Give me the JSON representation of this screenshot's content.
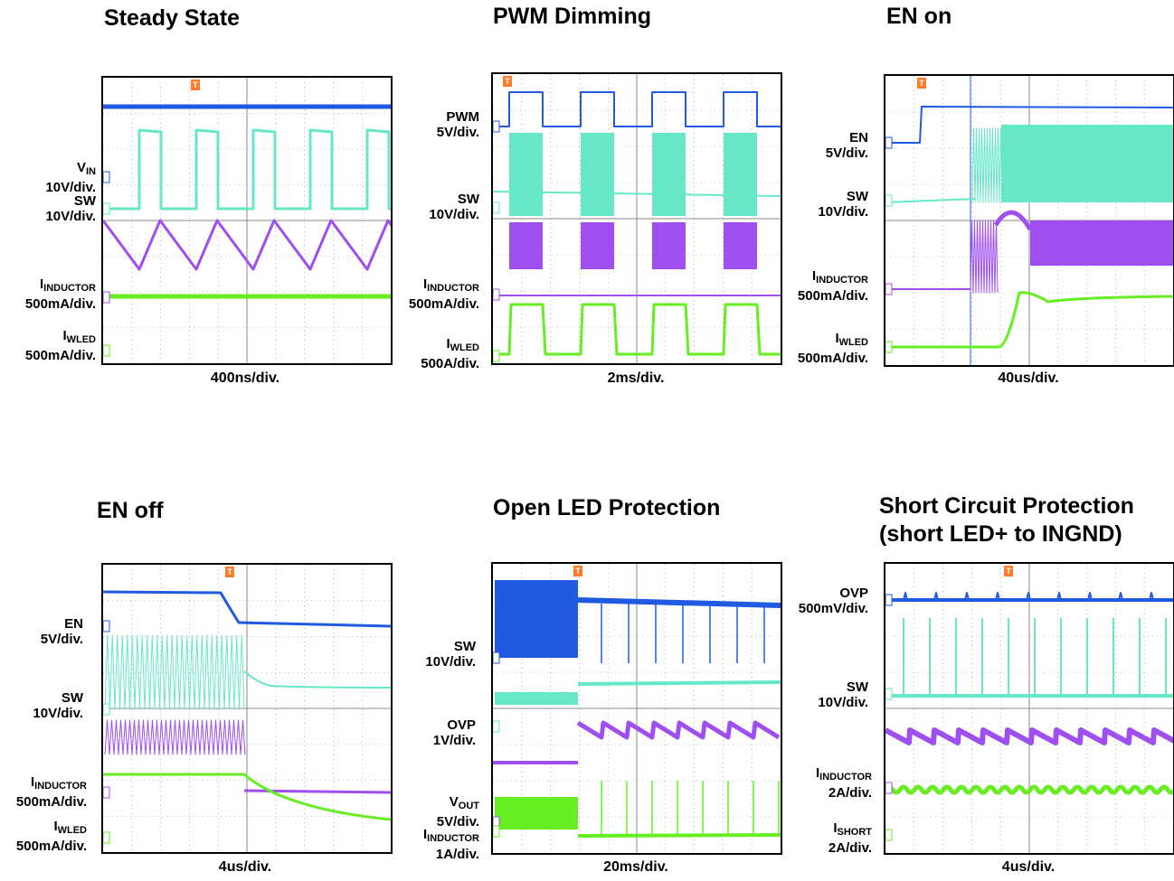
{
  "colors": {
    "blue": "#1f5ae0",
    "teal": "#66e8c8",
    "purple": "#9f4ef0",
    "green": "#66ee22",
    "trigger": "#ff7a2a",
    "grid": "#888888"
  },
  "trigger_glyph": "T",
  "panels": [
    {
      "title": [
        "Steady State"
      ],
      "timebase": "400ns/div.",
      "labels": [
        {
          "text": "V",
          "sub": "IN",
          "scale": "10V/div.",
          "ch": "1"
        },
        {
          "text": "SW",
          "sub": "",
          "scale": "10V/div.",
          "ch": "2"
        },
        {
          "text": "I",
          "sub": "INDUCTOR",
          "scale": "500mA/div.",
          "ch": "3"
        },
        {
          "text": "I",
          "sub": "WLED",
          "scale": "500mA/div.",
          "ch": "4"
        }
      ]
    },
    {
      "title": [
        "PWM Dimming"
      ],
      "timebase": "2ms/div.",
      "labels": [
        {
          "text": "PWM",
          "sub": "",
          "scale": "5V/div.",
          "ch": "1"
        },
        {
          "text": "SW",
          "sub": "",
          "scale": "10V/div.",
          "ch": "2"
        },
        {
          "text": "I",
          "sub": "INDUCTOR",
          "scale": "500mA/div.",
          "ch": "3"
        },
        {
          "text": "I",
          "sub": "WLED",
          "scale": "500A/div.",
          "ch": "4"
        }
      ]
    },
    {
      "title": [
        "EN on"
      ],
      "timebase": "40us/div.",
      "labels": [
        {
          "text": "EN",
          "sub": "",
          "scale": "5V/div.",
          "ch": "1"
        },
        {
          "text": "SW",
          "sub": "",
          "scale": "10V/div.",
          "ch": "2"
        },
        {
          "text": "I",
          "sub": "INDUCTOR",
          "scale": "500mA/div.",
          "ch": "3"
        },
        {
          "text": "I",
          "sub": "WLED",
          "scale": "500mA/div.",
          "ch": "4"
        }
      ]
    },
    {
      "title": [
        "EN off"
      ],
      "timebase": "4us/div.",
      "labels": [
        {
          "text": "EN",
          "sub": "",
          "scale": "5V/div.",
          "ch": "1"
        },
        {
          "text": "SW",
          "sub": "",
          "scale": "10V/div.",
          "ch": "2"
        },
        {
          "text": "I",
          "sub": "INDUCTOR",
          "scale": "500mA/div.",
          "ch": "3"
        },
        {
          "text": "I",
          "sub": "WLED",
          "scale": "500mA/div.",
          "ch": "4"
        }
      ]
    },
    {
      "title": [
        "Open LED Protection"
      ],
      "timebase": "20ms/div.",
      "labels": [
        {
          "text": "SW",
          "sub": "",
          "scale": "10V/div.",
          "ch": "1"
        },
        {
          "text": "OVP",
          "sub": "",
          "scale": "1V/div.",
          "ch": "2"
        },
        {
          "text": "V",
          "sub": "OUT",
          "scale": "5V/div.",
          "ch": "3"
        },
        {
          "text": "I",
          "sub": "INDUCTOR",
          "scale": "1A/div.",
          "ch": "4"
        }
      ]
    },
    {
      "title": [
        "Short Circuit Protection",
        "(short LED+ to INGND)"
      ],
      "timebase": "4us/div.",
      "labels": [
        {
          "text": "OVP",
          "sub": "",
          "scale": "500mV/div.",
          "ch": "1"
        },
        {
          "text": "SW",
          "sub": "",
          "scale": "10V/div.",
          "ch": "2"
        },
        {
          "text": "I",
          "sub": "INDUCTOR",
          "scale": "2A/div.",
          "ch": "3"
        },
        {
          "text": "I",
          "sub": "SHORT",
          "scale": "2A/div.",
          "ch": "4"
        }
      ]
    }
  ],
  "chart_data": [
    {
      "type": "line",
      "title": "Steady State",
      "xlabel": "400ns/div.",
      "series": [
        {
          "name": "VIN",
          "values": []
        },
        {
          "name": "SW",
          "values": []
        },
        {
          "name": "IINDUCTOR",
          "values": []
        },
        {
          "name": "IWLED",
          "values": []
        }
      ]
    },
    {
      "type": "line",
      "title": "PWM Dimming",
      "xlabel": "2ms/div.",
      "series": [
        {
          "name": "PWM",
          "values": []
        },
        {
          "name": "SW",
          "values": []
        },
        {
          "name": "IINDUCTOR",
          "values": []
        },
        {
          "name": "IWLED",
          "values": []
        }
      ]
    },
    {
      "type": "line",
      "title": "EN on",
      "xlabel": "40us/div.",
      "series": [
        {
          "name": "EN",
          "values": []
        },
        {
          "name": "SW",
          "values": []
        },
        {
          "name": "IINDUCTOR",
          "values": []
        },
        {
          "name": "IWLED",
          "values": []
        }
      ]
    },
    {
      "type": "line",
      "title": "EN off",
      "xlabel": "4us/div.",
      "series": [
        {
          "name": "EN",
          "values": []
        },
        {
          "name": "SW",
          "values": []
        },
        {
          "name": "IINDUCTOR",
          "values": []
        },
        {
          "name": "IWLED",
          "values": []
        }
      ]
    },
    {
      "type": "line",
      "title": "Open LED Protection",
      "xlabel": "20ms/div.",
      "series": [
        {
          "name": "SW",
          "values": []
        },
        {
          "name": "OVP",
          "values": []
        },
        {
          "name": "VOUT",
          "values": []
        },
        {
          "name": "IINDUCTOR",
          "values": []
        }
      ]
    },
    {
      "type": "line",
      "title": "Short Circuit Protection (short LED+ to INGND)",
      "xlabel": "4us/div.",
      "series": [
        {
          "name": "OVP",
          "values": []
        },
        {
          "name": "SW",
          "values": []
        },
        {
          "name": "IINDUCTOR",
          "values": []
        },
        {
          "name": "ISHORT",
          "values": []
        }
      ]
    }
  ]
}
